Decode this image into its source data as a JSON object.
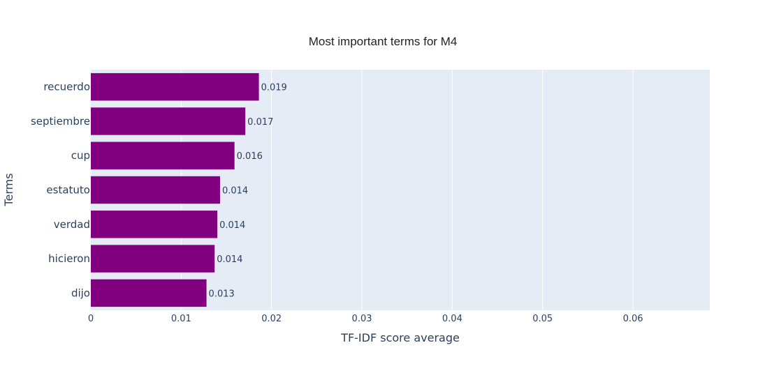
{
  "chart_data": {
    "type": "bar",
    "orientation": "horizontal",
    "title": "Most important terms for M4",
    "xlabel": "TF-IDF score average",
    "ylabel": "Terms",
    "categories": [
      "recuerdo",
      "septiembre",
      "cup",
      "estatuto",
      "verdad",
      "hicieron",
      "dijo"
    ],
    "values": [
      0.0186,
      0.0171,
      0.0159,
      0.0143,
      0.014,
      0.0137,
      0.0128
    ],
    "data_labels": [
      "0.019",
      "0.017",
      "0.016",
      "0.014",
      "0.014",
      "0.014",
      "0.013"
    ],
    "xlim": [
      0,
      0.0685
    ],
    "xticks": [
      0,
      0.01,
      0.02,
      0.03,
      0.04,
      0.05,
      0.06
    ],
    "xtick_labels": [
      "0",
      "0.01",
      "0.02",
      "0.03",
      "0.04",
      "0.05",
      "0.06"
    ],
    "grid": true,
    "bar_color": "#800080",
    "plot_bg": "#e5ecf6"
  }
}
